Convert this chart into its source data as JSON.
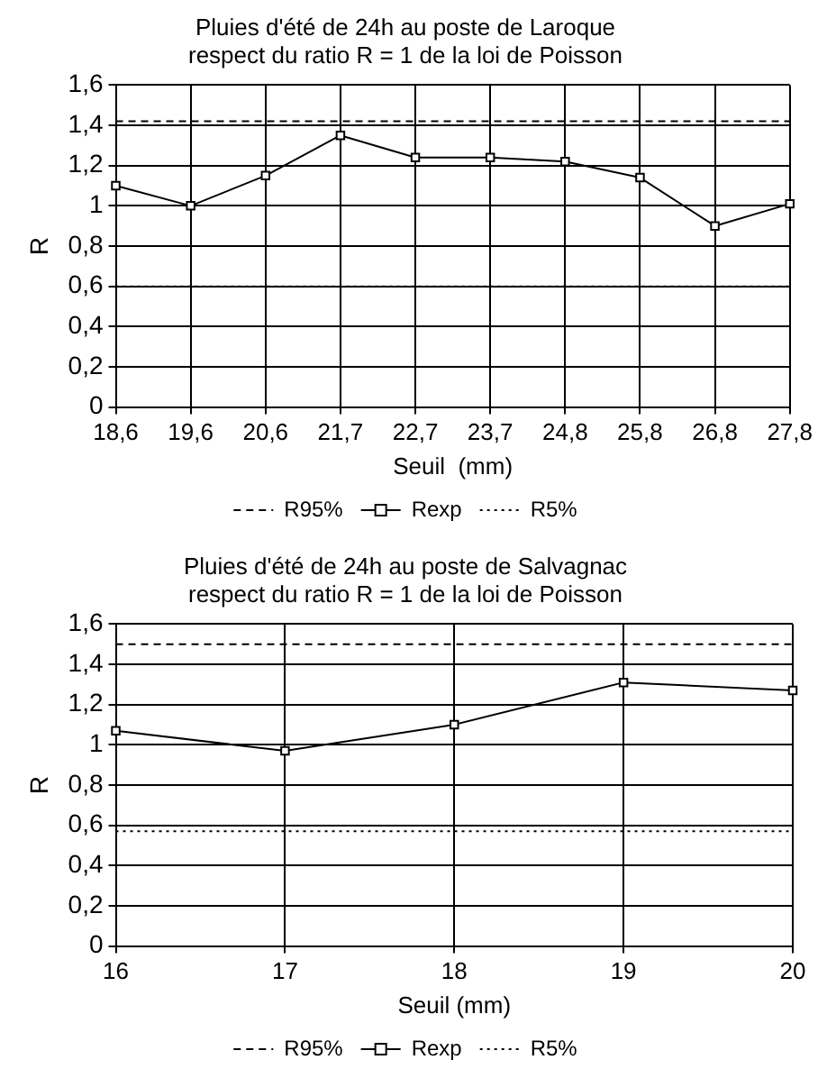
{
  "chart_data": [
    {
      "type": "line",
      "title": "Pluies d'été de 24h au poste de Laroque",
      "subtitle": "respect du ratio R = 1 de la loi de Poisson",
      "xlabel": "Seuil  (mm)",
      "ylabel": "R",
      "categories": [
        "18,6",
        "19,6",
        "20,6",
        "21,7",
        "22,7",
        "23,7",
        "24,8",
        "25,8",
        "26,8",
        "27,8"
      ],
      "series": [
        {
          "name": "R95%",
          "color": "#000000",
          "line_style": "dashed",
          "marker": "none",
          "values": [
            1.42,
            1.42,
            1.42,
            1.42,
            1.42,
            1.42,
            1.42,
            1.42,
            1.42,
            1.42
          ]
        },
        {
          "name": "Rexp",
          "color": "#000000",
          "line_style": "solid",
          "marker": "square",
          "values": [
            1.1,
            1.0,
            1.15,
            1.35,
            1.24,
            1.24,
            1.22,
            1.14,
            0.9,
            1.01
          ]
        },
        {
          "name": "R5%",
          "color": "#000000",
          "line_style": "dotted",
          "marker": "none",
          "values": [
            0.6,
            0.6,
            0.6,
            0.6,
            0.6,
            0.6,
            0.6,
            0.6,
            0.6,
            0.6
          ]
        }
      ],
      "ylim": [
        0,
        1.6
      ],
      "yticks": [
        {
          "value": 0,
          "label": "0"
        },
        {
          "value": 0.2,
          "label": "0,2"
        },
        {
          "value": 0.4,
          "label": "0,4"
        },
        {
          "value": 0.6,
          "label": "0,6"
        },
        {
          "value": 0.8,
          "label": "0,8"
        },
        {
          "value": 1,
          "label": "1"
        },
        {
          "value": 1.2,
          "label": "1,2"
        },
        {
          "value": 1.4,
          "label": "1,4"
        },
        {
          "value": 1.6,
          "label": "1,6"
        }
      ],
      "grid": true,
      "legend": "bottom"
    },
    {
      "type": "line",
      "title": "Pluies d'été de 24h au poste de Salvagnac",
      "subtitle": "respect du ratio R = 1 de la loi de Poisson",
      "xlabel": "Seuil (mm)",
      "ylabel": "R",
      "categories": [
        "16",
        "17",
        "18",
        "19",
        "20"
      ],
      "series": [
        {
          "name": "R95%",
          "color": "#000000",
          "line_style": "dashed",
          "marker": "none",
          "values": [
            1.5,
            1.5,
            1.5,
            1.5,
            1.5
          ]
        },
        {
          "name": "Rexp",
          "color": "#000000",
          "line_style": "solid",
          "marker": "square",
          "values": [
            1.07,
            0.97,
            1.1,
            1.31,
            1.27
          ]
        },
        {
          "name": "R5%",
          "color": "#000000",
          "line_style": "dotted",
          "marker": "none",
          "values": [
            0.57,
            0.57,
            0.57,
            0.57,
            0.57
          ]
        }
      ],
      "ylim": [
        0,
        1.6
      ],
      "yticks": [
        {
          "value": 0,
          "label": "0"
        },
        {
          "value": 0.2,
          "label": "0,2"
        },
        {
          "value": 0.4,
          "label": "0,4"
        },
        {
          "value": 0.6,
          "label": "0,6"
        },
        {
          "value": 0.8,
          "label": "0,8"
        },
        {
          "value": 1,
          "label": "1"
        },
        {
          "value": 1.2,
          "label": "1,2"
        },
        {
          "value": 1.4,
          "label": "1,4"
        },
        {
          "value": 1.6,
          "label": "1,6"
        }
      ],
      "grid": true,
      "legend": "bottom"
    }
  ]
}
